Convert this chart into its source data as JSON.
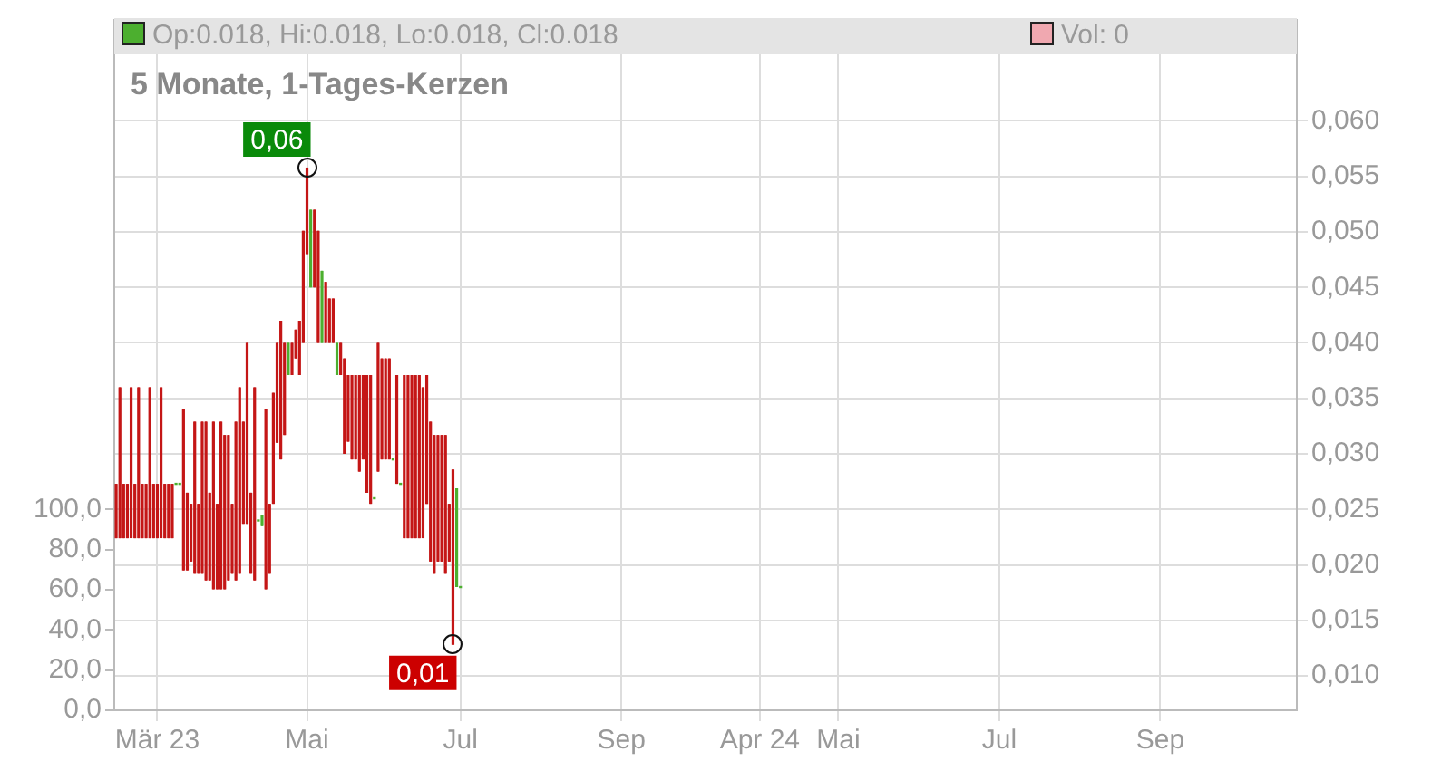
{
  "chart_data": {
    "type": "candlestick",
    "title": "5 Monate, 1-Tages-Kerzen",
    "annotations": [
      "Op:0.018, Hi:0.018, Lo:0.018, Cl:0.018",
      "Vol: 0",
      "0,06",
      "0,01"
    ],
    "categories": [
      null,
      null,
      null,
      null,
      null,
      null,
      null,
      null,
      null,
      null,
      null,
      "Mär 23",
      null,
      null,
      null,
      null,
      null,
      null,
      null,
      null,
      null,
      null,
      null,
      null,
      null,
      null,
      null,
      null,
      null,
      null,
      null,
      null,
      null,
      null,
      null,
      null,
      null,
      null,
      null,
      null,
      null,
      null,
      null,
      null,
      null,
      null,
      null,
      null,
      null,
      null,
      null,
      "Mai",
      null,
      null,
      null,
      null,
      null,
      null,
      null,
      null,
      null,
      null,
      null,
      null,
      null,
      null,
      null,
      null,
      null,
      null,
      null,
      null,
      null,
      null,
      null,
      null,
      null,
      null,
      null,
      null,
      null,
      null,
      null,
      null,
      null,
      null,
      null,
      null,
      null,
      null,
      null,
      null,
      "Jul",
      null,
      null,
      null,
      null,
      null,
      null,
      null,
      null,
      null,
      null,
      null,
      null,
      null,
      null,
      null,
      null,
      null,
      null,
      null,
      null,
      null,
      null,
      null,
      null,
      null,
      null,
      null,
      null,
      null,
      null,
      null,
      null,
      null,
      null,
      null,
      null,
      null,
      null,
      null,
      null,
      null,
      null,
      "Sep",
      null,
      null,
      null,
      null,
      null,
      null,
      null,
      null,
      null,
      null,
      null,
      null,
      null,
      null,
      null,
      null,
      null,
      null,
      null,
      null,
      null,
      null,
      null,
      null,
      null,
      null,
      null,
      null,
      null,
      null,
      null,
      null,
      null,
      null,
      null,
      null,
      "Apr 24",
      null,
      null,
      null,
      null,
      null,
      null,
      null,
      null,
      null,
      null,
      null,
      null,
      null,
      null,
      null,
      null,
      null,
      null,
      null,
      null,
      "Mai",
      null,
      null,
      null,
      null,
      null,
      null,
      null,
      null,
      null,
      null,
      null,
      null,
      null,
      null,
      null,
      null,
      null,
      null,
      null,
      null,
      null,
      null,
      null,
      null,
      null,
      null,
      null,
      null,
      null,
      null,
      null,
      null,
      null,
      null,
      null,
      null,
      null,
      null,
      null,
      null,
      null,
      null,
      "Jul",
      null,
      null,
      null,
      null,
      null,
      null,
      null,
      null,
      null,
      null,
      null,
      null,
      null,
      null,
      null,
      null,
      null,
      null,
      null,
      null,
      null,
      null,
      null,
      null,
      null,
      null,
      null,
      null,
      null,
      null,
      null,
      null,
      null,
      null,
      null,
      null,
      null,
      null,
      null,
      null,
      null,
      null,
      "Sep",
      null,
      null,
      null,
      null,
      null,
      null,
      null,
      null,
      null,
      null,
      null,
      null,
      null,
      null,
      null,
      null,
      null,
      null,
      null,
      null,
      null,
      null,
      null,
      null,
      null,
      null,
      null,
      null,
      null,
      null,
      null,
      null,
      null,
      null,
      null,
      null
    ],
    "series": [
      {
        "colors": [
          "#c41616",
          "#c41616",
          "#c41616",
          "#c41616",
          "#c41616",
          "#c41616",
          "#c41616",
          "#c41616",
          "#c41616",
          "#c41616",
          "#c41616",
          "#c41616",
          "#c41616",
          "#c41616",
          "#c41616",
          "#c41616",
          "#4caf2f",
          "#4caf2f",
          "#c41616",
          "#c41616",
          "#c41616",
          "#c41616",
          "#c41616",
          "#c41616",
          "#c41616",
          "#c41616",
          "#c41616",
          "#c41616",
          "#c41616",
          "#c41616",
          "#c41616",
          "#c41616",
          "#c41616",
          "#c41616",
          "#c41616",
          "#c41616",
          "#c41616",
          "#c41616",
          "#4caf2f",
          "#4caf2f",
          "#c41616",
          "#c41616",
          "#c41616",
          "#c41616",
          "#c41616",
          "#c41616",
          "#4caf2f",
          "#c41616",
          "#c41616",
          "#c41616",
          "#c41616",
          "#c41616",
          "#4caf2f",
          "#c41616",
          "#c41616",
          "#4caf2f",
          "#c41616",
          "#c41616",
          "#c41616",
          "#4caf2f",
          "#c41616",
          "#c41616",
          "#c41616",
          "#c41616",
          "#c41616",
          "#c41616",
          "#c41616",
          "#c41616",
          "#c41616",
          "#4caf2f",
          "#c41616",
          "#c41616",
          "#c41616",
          "#c41616",
          "#4caf2f",
          "#c41616",
          "#4caf2f",
          "#c41616",
          "#c41616",
          "#c41616",
          "#c41616",
          "#c41616",
          "#c41616",
          "#c41616",
          "#c41616",
          "#c41616",
          "#c41616",
          "#c41616",
          "#c41616",
          "#c41616",
          "#c41616",
          "#4caf2f",
          "#4caf2f",
          null,
          null,
          null,
          null,
          null,
          null,
          null,
          null,
          null,
          null,
          null,
          null,
          null,
          null,
          null,
          null,
          null,
          null,
          null,
          null,
          null,
          null,
          null,
          null,
          null,
          null,
          null,
          null,
          null,
          null,
          null,
          null,
          null,
          null,
          null,
          null,
          null,
          null,
          null,
          null,
          null,
          null,
          null,
          null,
          null,
          null,
          null,
          null,
          null,
          null,
          null,
          null,
          null,
          null,
          null,
          null,
          null,
          null,
          null,
          null,
          null,
          null,
          null,
          null,
          null,
          null,
          null,
          null,
          null,
          null,
          null,
          null,
          null,
          null,
          null,
          null,
          null,
          null,
          null,
          null,
          null,
          null,
          null,
          null,
          null,
          null,
          null,
          null,
          null,
          null,
          null,
          null,
          null,
          null,
          null,
          null,
          null,
          null,
          null,
          null,
          null,
          null,
          null,
          null,
          null,
          null,
          null,
          null,
          null,
          null,
          null,
          null,
          null,
          null,
          null,
          null,
          null,
          null,
          null,
          null,
          null,
          null,
          null,
          null,
          null,
          null,
          null,
          null,
          null,
          null,
          null,
          null,
          null,
          null,
          null,
          null,
          null,
          null,
          null,
          null,
          null,
          null,
          null,
          null,
          null,
          null,
          null,
          null,
          null,
          null,
          null,
          null,
          null,
          null,
          null,
          null,
          null,
          null,
          null,
          null,
          null,
          null,
          null,
          null,
          null,
          null,
          null,
          null,
          null,
          null,
          null,
          null,
          null,
          null,
          null,
          null,
          null,
          null,
          null,
          null,
          null,
          null,
          null,
          null,
          null,
          null,
          null,
          null,
          null,
          null,
          null,
          null,
          null,
          null,
          null,
          null,
          null,
          null,
          null,
          null,
          null,
          null,
          null,
          null,
          null,
          null,
          null,
          null,
          null,
          null,
          null,
          null,
          null,
          null,
          null,
          null,
          null,
          null,
          null,
          null,
          null,
          null,
          null
        ],
        "ohlc": [
          [
            0.0273,
            0.0273,
            0.0224,
            0.0224
          ],
          [
            0.036,
            0.036,
            0.0224,
            0.0224
          ],
          [
            0.0273,
            0.0273,
            0.0224,
            0.0224
          ],
          [
            0.0273,
            0.0273,
            0.0224,
            0.0224
          ],
          [
            0.036,
            0.036,
            0.0224,
            0.0224
          ],
          [
            0.0273,
            0.0273,
            0.0224,
            0.0224
          ],
          [
            0.036,
            0.036,
            0.0224,
            0.0224
          ],
          [
            0.0273,
            0.0273,
            0.0224,
            0.0224
          ],
          [
            0.0273,
            0.0273,
            0.0224,
            0.0224
          ],
          [
            0.036,
            0.036,
            0.0224,
            0.0224
          ],
          [
            0.0273,
            0.0273,
            0.0224,
            0.0224
          ],
          [
            0.0273,
            0.0273,
            0.0224,
            0.0224
          ],
          [
            0.036,
            0.036,
            0.0224,
            0.0224
          ],
          [
            0.0273,
            0.0273,
            0.0224,
            0.0224
          ],
          [
            0.0273,
            0.0273,
            0.0224,
            0.0224
          ],
          [
            0.0273,
            0.0273,
            0.0224,
            0.0224
          ],
          [
            0.0273,
            0.0273,
            0.0273,
            0.0273
          ],
          [
            0.0273,
            0.0273,
            0.0273,
            0.0273
          ],
          [
            0.034,
            0.034,
            0.0195,
            0.0195
          ],
          [
            0.0265,
            0.0265,
            0.0195,
            0.0195
          ],
          [
            0.0255,
            0.0255,
            0.0203,
            0.0203
          ],
          [
            0.0329,
            0.0329,
            0.0192,
            0.0192
          ],
          [
            0.0255,
            0.0255,
            0.0192,
            0.0192
          ],
          [
            0.0329,
            0.0329,
            0.0192,
            0.0192
          ],
          [
            0.0329,
            0.0329,
            0.0186,
            0.0186
          ],
          [
            0.0265,
            0.0265,
            0.0186,
            0.0186
          ],
          [
            0.0329,
            0.0329,
            0.0178,
            0.0178
          ],
          [
            0.0255,
            0.0255,
            0.0178,
            0.0178
          ],
          [
            0.0329,
            0.0329,
            0.0178,
            0.0178
          ],
          [
            0.0317,
            0.0317,
            0.0178,
            0.0178
          ],
          [
            0.0317,
            0.0317,
            0.0186,
            0.0186
          ],
          [
            0.0255,
            0.0255,
            0.0192,
            0.0192
          ],
          [
            0.0329,
            0.0329,
            0.0186,
            0.0186
          ],
          [
            0.036,
            0.036,
            0.0192,
            0.0192
          ],
          [
            0.0329,
            0.0329,
            0.0237,
            0.0237
          ],
          [
            0.04,
            0.04,
            0.0237,
            0.0237
          ],
          [
            0.0265,
            0.0265,
            0.0192,
            0.0192
          ],
          [
            0.036,
            0.036,
            0.0186,
            0.0186
          ],
          [
            0.024,
            0.024,
            0.024,
            0.024
          ],
          [
            0.0235,
            0.0245,
            0.0235,
            0.0245
          ],
          [
            0.034,
            0.034,
            0.0178,
            0.0178
          ],
          [
            0.0255,
            0.0255,
            0.0192,
            0.0192
          ],
          [
            0.0355,
            0.0355,
            0.0255,
            0.0255
          ],
          [
            0.04,
            0.04,
            0.031,
            0.031
          ],
          [
            0.042,
            0.042,
            0.0295,
            0.0295
          ],
          [
            0.04,
            0.04,
            0.0317,
            0.0317
          ],
          [
            0.0371,
            0.04,
            0.0371,
            0.04
          ],
          [
            0.04,
            0.04,
            0.0371,
            0.0371
          ],
          [
            0.0412,
            0.0412,
            0.0386,
            0.0386
          ],
          [
            0.042,
            0.042,
            0.0371,
            0.0371
          ],
          [
            0.0501,
            0.0501,
            0.04,
            0.04
          ],
          [
            0.0558,
            0.0558,
            0.048,
            0.048
          ],
          [
            0.045,
            0.052,
            0.045,
            0.052
          ],
          [
            0.052,
            0.052,
            0.045,
            0.045
          ],
          [
            0.0501,
            0.0501,
            0.04,
            0.04
          ],
          [
            0.04,
            0.0465,
            0.04,
            0.0465
          ],
          [
            0.0455,
            0.0455,
            0.04,
            0.04
          ],
          [
            0.044,
            0.044,
            0.04,
            0.04
          ],
          [
            0.044,
            0.044,
            0.04,
            0.04
          ],
          [
            0.0371,
            0.04,
            0.0371,
            0.04
          ],
          [
            0.04,
            0.04,
            0.0371,
            0.0371
          ],
          [
            0.0386,
            0.0386,
            0.03,
            0.03
          ],
          [
            0.0371,
            0.0371,
            0.0311,
            0.0311
          ],
          [
            0.0371,
            0.0371,
            0.0295,
            0.0295
          ],
          [
            0.0371,
            0.0371,
            0.0295,
            0.0295
          ],
          [
            0.0371,
            0.0371,
            0.0284,
            0.0284
          ],
          [
            0.0371,
            0.0371,
            0.0295,
            0.0295
          ],
          [
            0.0371,
            0.0371,
            0.0265,
            0.0265
          ],
          [
            0.0371,
            0.0371,
            0.0255,
            0.0255
          ],
          [
            0.026,
            0.026,
            0.026,
            0.026
          ],
          [
            0.04,
            0.04,
            0.0284,
            0.0284
          ],
          [
            0.0386,
            0.0386,
            0.0295,
            0.0295
          ],
          [
            0.0386,
            0.0386,
            0.0295,
            0.0295
          ],
          [
            0.0386,
            0.0386,
            0.0295,
            0.0295
          ],
          [
            0.0295,
            0.0295,
            0.0295,
            0.0295
          ],
          [
            0.0371,
            0.0371,
            0.0273,
            0.0273
          ],
          [
            0.0273,
            0.0273,
            0.0273,
            0.0273
          ],
          [
            0.0371,
            0.0371,
            0.0224,
            0.0224
          ],
          [
            0.0371,
            0.0371,
            0.0224,
            0.0224
          ],
          [
            0.0371,
            0.0371,
            0.0224,
            0.0224
          ],
          [
            0.0371,
            0.0371,
            0.0224,
            0.0224
          ],
          [
            0.0371,
            0.0371,
            0.0224,
            0.0224
          ],
          [
            0.036,
            0.036,
            0.0224,
            0.0224
          ],
          [
            0.0371,
            0.0371,
            0.0255,
            0.0255
          ],
          [
            0.0329,
            0.0329,
            0.0203,
            0.0203
          ],
          [
            0.0317,
            0.0317,
            0.0192,
            0.0192
          ],
          [
            0.0317,
            0.0317,
            0.0203,
            0.0203
          ],
          [
            0.0317,
            0.0317,
            0.0203,
            0.0203
          ],
          [
            0.0317,
            0.0317,
            0.0192,
            0.0192
          ],
          [
            0.0255,
            0.0255,
            0.0203,
            0.0203
          ],
          [
            0.0286,
            0.0286,
            0.0128,
            0.0128
          ],
          [
            0.018,
            0.0269,
            0.018,
            0.0269
          ],
          [
            0.018,
            0.018,
            0.018,
            0.018
          ],
          null,
          null,
          null,
          null,
          null,
          null,
          null,
          null,
          null,
          null,
          null,
          null,
          null,
          null,
          null,
          null,
          null,
          null,
          null,
          null,
          null,
          null,
          null,
          null,
          null,
          null,
          null,
          null,
          null,
          null,
          null,
          null,
          null,
          null,
          null,
          null,
          null,
          null,
          null,
          null,
          null,
          null,
          null,
          null,
          null,
          null,
          null,
          null,
          null,
          null,
          null,
          null,
          null,
          null,
          null,
          null,
          null,
          null,
          null,
          null,
          null,
          null,
          null,
          null,
          null,
          null,
          null,
          null,
          null,
          null,
          null,
          null,
          null,
          null,
          null,
          null,
          null,
          null,
          null,
          null,
          null,
          null,
          null,
          null,
          null,
          null,
          null,
          null,
          null,
          null,
          null,
          null,
          null,
          null,
          null,
          null,
          null,
          null,
          null,
          null,
          null,
          null,
          null,
          null,
          null,
          null,
          null,
          null,
          null,
          null,
          null,
          null,
          null,
          null,
          null,
          null,
          null,
          null,
          null,
          null,
          null,
          null,
          null,
          null,
          null,
          null,
          null,
          null,
          null,
          null,
          null,
          null,
          null,
          null,
          null,
          null,
          null,
          null,
          null,
          null,
          null,
          null,
          null,
          null,
          null,
          null,
          null,
          null,
          null,
          null,
          null,
          null,
          null,
          null,
          null,
          null,
          null,
          null,
          null,
          null,
          null,
          null,
          null,
          null,
          null,
          null,
          null,
          null,
          null,
          null,
          null,
          null,
          null,
          null,
          null,
          null,
          null,
          null,
          null,
          null,
          null,
          null,
          null,
          null,
          null,
          null,
          null,
          null,
          null,
          null,
          null,
          null,
          null,
          null,
          null,
          null,
          null,
          null,
          null,
          null,
          null,
          null,
          null,
          null,
          null,
          null,
          null,
          null,
          null,
          null,
          null,
          null,
          null,
          null,
          null,
          null,
          null,
          null,
          null,
          null,
          null,
          null,
          null
        ]
      }
    ],
    "ylim": [
      0.0069,
      0.0691
    ],
    "yticks": [
      {
        "value": 0.01,
        "label": "0,010"
      },
      {
        "value": 0.015,
        "label": "0,015"
      },
      {
        "value": 0.02,
        "label": "0,020"
      },
      {
        "value": 0.025,
        "label": "0,025"
      },
      {
        "value": 0.03,
        "label": "0,030"
      },
      {
        "value": 0.035,
        "label": "0,035"
      },
      {
        "value": 0.04,
        "label": "0,040"
      },
      {
        "value": 0.045,
        "label": "0,045"
      },
      {
        "value": 0.05,
        "label": "0,050"
      },
      {
        "value": 0.055,
        "label": "0,055"
      },
      {
        "value": 0.06,
        "label": "0,060"
      }
    ],
    "y2lim": [
      0,
      344
    ],
    "y2ticks": [
      {
        "value": 0,
        "label": "0,0"
      },
      {
        "value": 20,
        "label": "20,0"
      },
      {
        "value": 40,
        "label": "40,0"
      },
      {
        "value": 60,
        "label": "60,0"
      },
      {
        "value": 80,
        "label": "80,0"
      },
      {
        "value": 100,
        "label": "100,0"
      }
    ],
    "grid": true,
    "legend": false
  }
}
